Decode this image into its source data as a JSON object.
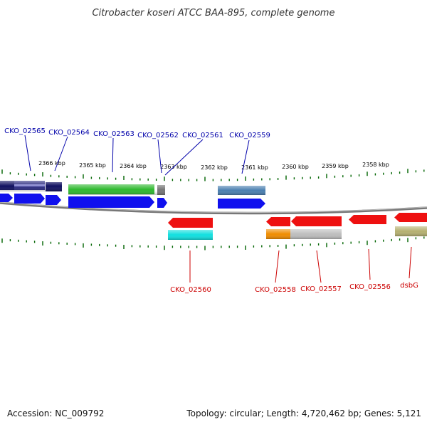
{
  "title": "Citrobacter koseri ATCC BAA-895, complete genome",
  "footer": {
    "accession": "Accession: NC_009792",
    "summary": "Topology: circular; Length: 4,720,462 bp; Genes: 5,121"
  },
  "scale": {
    "ticks": [
      "2366 kbp",
      "2365 kbp",
      "2364 kbp",
      "2363 kbp",
      "2362 kbp",
      "2361 kbp",
      "2360 kbp",
      "2359 kbp",
      "2358 kbp"
    ],
    "tick_color": "#006400"
  },
  "genes_top": [
    {
      "name": "CKO_02565",
      "color": "#0000aa"
    },
    {
      "name": "CKO_02564",
      "color": "#0000aa"
    },
    {
      "name": "CKO_02563",
      "color": "#0000aa"
    },
    {
      "name": "CKO_02562",
      "color": "#0000aa"
    },
    {
      "name": "CKO_02561",
      "color": "#0000aa"
    },
    {
      "name": "CKO_02559",
      "color": "#0000aa"
    }
  ],
  "genes_bottom": [
    {
      "name": "CKO_02560",
      "color": "#cc0000"
    },
    {
      "name": "CKO_02558",
      "color": "#cc0000"
    },
    {
      "name": "CKO_02557",
      "color": "#cc0000"
    },
    {
      "name": "CKO_02556",
      "color": "#cc0000"
    },
    {
      "name": "dsbG",
      "color": "#cc0000"
    }
  ],
  "colors": {
    "forward_cds": "#1010ee",
    "reverse_cds": "#ee1010",
    "navy_feature": "#101060",
    "green_feature": "#2eb82e",
    "gray_feature": "#777777",
    "steelblue_feature": "#4a7fb0",
    "cyan_feature": "#10e0e0",
    "orange_feature": "#f08c00",
    "silver_feature": "#bdbdbd",
    "olive_feature": "#b5b070",
    "backbone": "#888888"
  }
}
